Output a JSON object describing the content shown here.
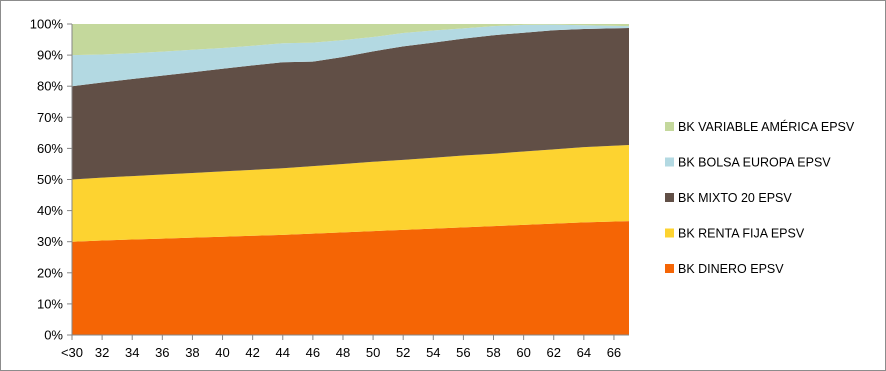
{
  "chart_data": {
    "type": "area",
    "stacked": true,
    "x": [
      "<30",
      "32",
      "34",
      "36",
      "38",
      "40",
      "42",
      "44",
      "46",
      "48",
      "50",
      "52",
      "54",
      "56",
      "58",
      "60",
      "62",
      "64",
      "66"
    ],
    "x_extends_to": 67,
    "x_ticks": [
      "<30",
      "32",
      "34",
      "36",
      "38",
      "40",
      "42",
      "44",
      "46",
      "48",
      "50",
      "52",
      "54",
      "56",
      "58",
      "60",
      "62",
      "64",
      "66"
    ],
    "y_ticks": [
      "0%",
      "10%",
      "20%",
      "30%",
      "40%",
      "50%",
      "60%",
      "70%",
      "80%",
      "90%",
      "100%"
    ],
    "ylim": [
      0,
      100
    ],
    "grid": "horizontal",
    "legend_position": "right",
    "series": [
      {
        "name": "BK DINERO EPSV",
        "color": "#f56505",
        "values": [
          30,
          30.4,
          30.7,
          31.0,
          31.3,
          31.6,
          31.9,
          32.2,
          32.6,
          33.0,
          33.4,
          33.8,
          34.2,
          34.6,
          35.0,
          35.4,
          35.8,
          36.2,
          36.6
        ]
      },
      {
        "name": "BK RENTA FIJA EPSV",
        "color": "#fdd330",
        "values": [
          20,
          20.2,
          20.4,
          20.6,
          20.8,
          21.0,
          21.2,
          21.4,
          21.7,
          22.0,
          22.3,
          22.5,
          22.8,
          23.1,
          23.3,
          23.6,
          23.9,
          24.2,
          24.5
        ]
      },
      {
        "name": "BK MIXTO 20 EPSV",
        "color": "#614f46",
        "values": [
          30,
          30.6,
          31.2,
          31.8,
          32.4,
          33.0,
          33.6,
          34.1,
          33.6,
          34.4,
          35.5,
          36.5,
          37.0,
          37.6,
          38.1,
          38.2,
          38.3,
          38.0,
          37.6
        ]
      },
      {
        "name": "BK BOLSA EUROPA EPSV",
        "color": "#b3d9e2",
        "values": [
          10,
          9.0,
          8.3,
          7.7,
          7.2,
          6.7,
          6.3,
          6.1,
          6.1,
          5.4,
          4.6,
          4.3,
          3.9,
          3.3,
          2.9,
          2.5,
          1.8,
          1.2,
          0.6
        ]
      },
      {
        "name": "BK VARIABLE AMÉRICA EPSV",
        "color": "#c4d89c",
        "values": [
          10,
          9.8,
          9.4,
          8.9,
          8.3,
          7.7,
          7.0,
          6.2,
          6.0,
          5.2,
          4.2,
          2.9,
          2.1,
          1.4,
          0.7,
          0.3,
          0.2,
          0.4,
          0.7
        ]
      }
    ],
    "legend_order": [
      "BK VARIABLE AMÉRICA EPSV",
      "BK BOLSA EUROPA EPSV",
      "BK MIXTO 20 EPSV",
      "BK RENTA FIJA EPSV",
      "BK DINERO EPSV"
    ]
  }
}
